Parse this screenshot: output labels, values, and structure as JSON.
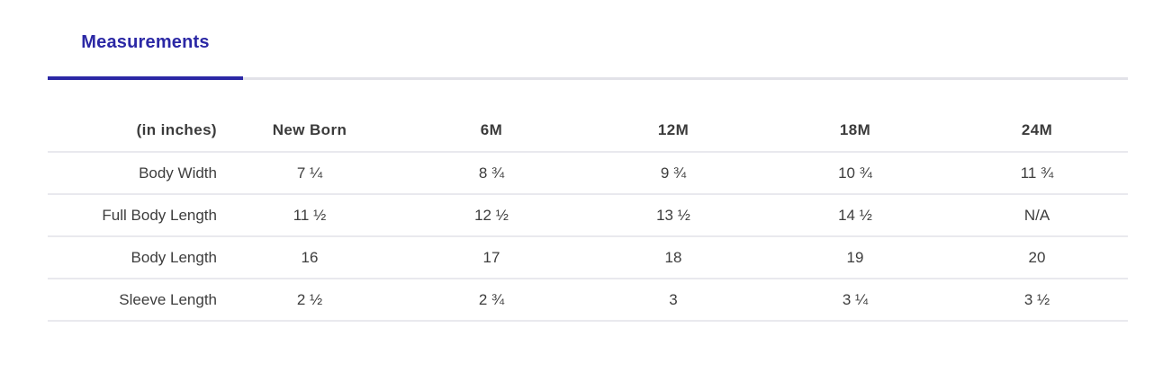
{
  "tabs": {
    "measurements_label": "Measurements"
  },
  "table": {
    "unit_header": "(in inches)",
    "columns": [
      "New Born",
      "6M",
      "12M",
      "18M",
      "24M"
    ],
    "rows": [
      {
        "label": "Body Width",
        "values": [
          "7 ¼",
          "8 ¾",
          "9 ¾",
          "10 ¾",
          "11 ¾"
        ]
      },
      {
        "label": "Full Body Length",
        "values": [
          "11 ½",
          "12 ½",
          "13 ½",
          "14 ½",
          "N/A"
        ]
      },
      {
        "label": "Body Length",
        "values": [
          "16",
          "17",
          "18",
          "19",
          "20"
        ]
      },
      {
        "label": "Sleeve Length",
        "values": [
          "2 ½",
          "2 ¾",
          "3",
          "3 ¼",
          "3 ½"
        ]
      }
    ]
  },
  "colors": {
    "accent": "#2b28a5",
    "tab_track": "#e2e2e8",
    "row_divider": "#e9e9ee",
    "text": "#3d3d3d"
  }
}
